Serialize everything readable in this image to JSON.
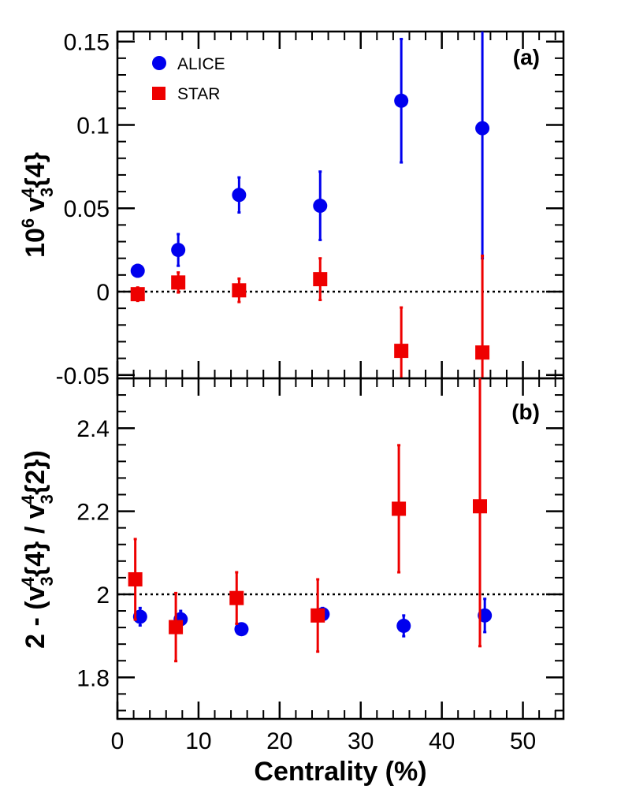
{
  "chart_data": [
    {
      "panel": "(a)",
      "type": "scatter",
      "xlabel": "Centrality (%)",
      "ylabel": "10^6 v_3^4{4}",
      "ylabel_parts": {
        "base": "10",
        "base_sup": "6",
        "var": "v",
        "sub": "3",
        "sup": "4",
        "tail": "{4}"
      },
      "xlim": [
        0,
        55
      ],
      "ylim": [
        -0.052,
        0.156
      ],
      "yticks": [
        -0.05,
        0,
        0.05,
        0.1,
        0.15
      ],
      "ytick_labels": [
        "-0.05",
        "0",
        "0.05",
        "0.1",
        "0.15"
      ],
      "reference_line": 0,
      "legend": [
        "ALICE",
        "STAR"
      ],
      "series": [
        {
          "name": "ALICE",
          "color": "#0000ee",
          "marker": "circle",
          "x": [
            2.5,
            7.5,
            15,
            25,
            35,
            45
          ],
          "y": [
            0.0125,
            0.025,
            0.058,
            0.0515,
            0.1145,
            0.098
          ],
          "err": [
            0.0035,
            0.0095,
            0.0105,
            0.0205,
            0.037,
            0.078
          ]
        },
        {
          "name": "STAR",
          "color": "#ee0000",
          "marker": "square",
          "x": [
            2.5,
            7.5,
            15,
            25,
            35,
            45
          ],
          "y": [
            -0.0015,
            0.0055,
            0.0008,
            0.0075,
            -0.0355,
            -0.0365
          ],
          "err": [
            0.004,
            0.006,
            0.007,
            0.0125,
            0.026,
            0.058
          ]
        }
      ]
    },
    {
      "panel": "(b)",
      "type": "scatter",
      "xlabel": "Centrality (%)",
      "ylabel": "2 - (v_3^4{4} / v_3^4{2})",
      "ylabel_parts": {
        "prefix": "2 - (",
        "var": "v",
        "sub": "3",
        "sup": "4",
        "tail1": "{4} / ",
        "tail2": "{2})"
      },
      "xlim": [
        0,
        55
      ],
      "ylim": [
        1.7,
        2.52
      ],
      "xticks": [
        0,
        10,
        20,
        30,
        40,
        50
      ],
      "xtick_labels": [
        "0",
        "10",
        "20",
        "30",
        "40",
        "50"
      ],
      "yticks": [
        1.8,
        2.0,
        2.2,
        2.4
      ],
      "ytick_labels": [
        "1.8",
        "2",
        "2.2",
        "2.4"
      ],
      "reference_line": 2.0,
      "series": [
        {
          "name": "ALICE",
          "color": "#0000ee",
          "marker": "circle",
          "x": [
            2.8,
            7.8,
            15.3,
            25.3,
            35.3,
            45.3
          ],
          "y": [
            1.946,
            1.94,
            1.916,
            1.952,
            1.924,
            1.949
          ],
          "err": [
            0.021,
            0.02,
            0.009,
            0.015,
            0.025,
            0.04
          ]
        },
        {
          "name": "STAR",
          "color": "#ee0000",
          "marker": "square",
          "x": [
            2.2,
            7.2,
            14.7,
            24.7,
            34.7,
            44.7
          ],
          "y": [
            2.036,
            1.921,
            1.991,
            1.949,
            2.206,
            2.212
          ],
          "err": [
            0.097,
            0.082,
            0.062,
            0.087,
            0.153,
            0.337
          ]
        }
      ]
    }
  ]
}
